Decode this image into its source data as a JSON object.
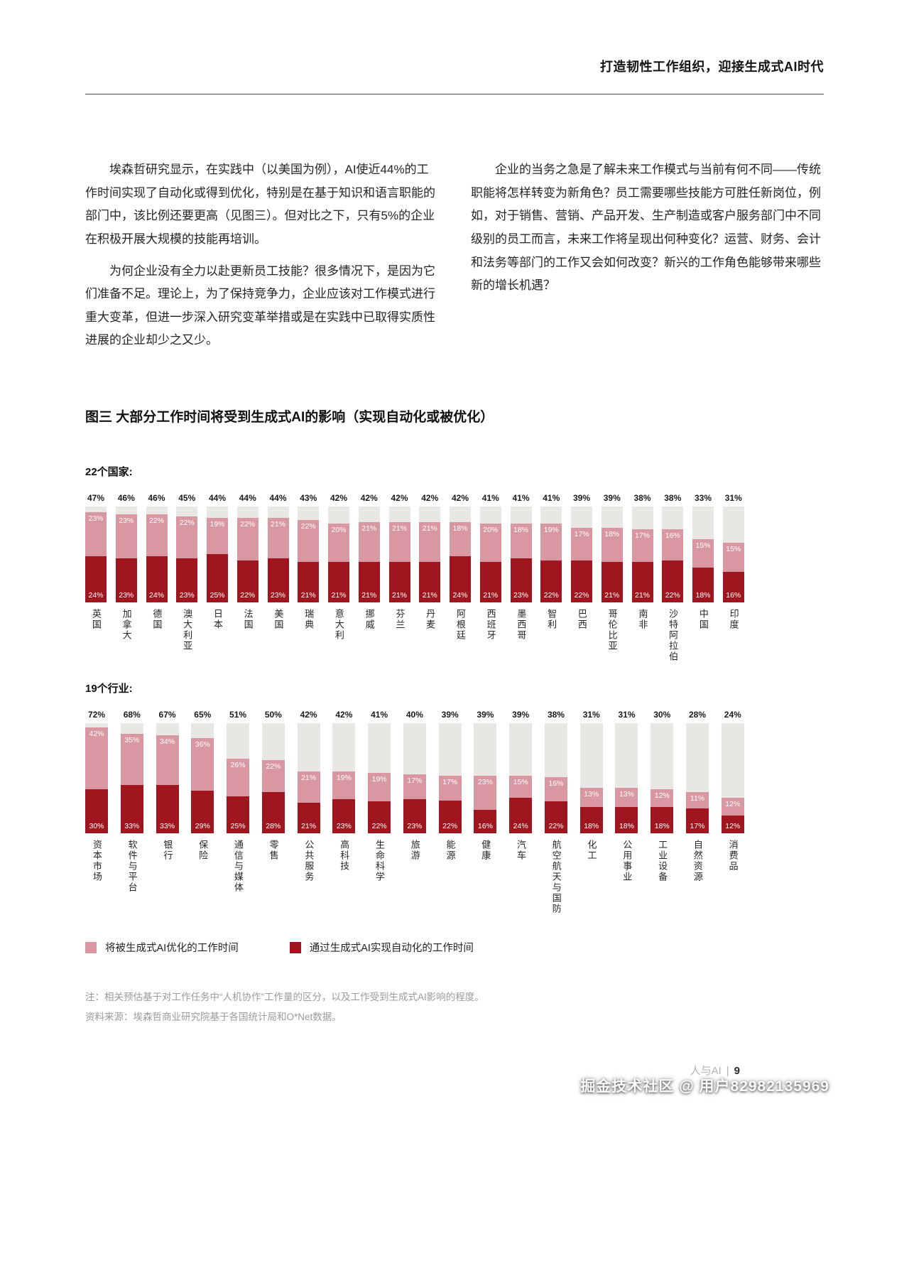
{
  "header": {
    "title": "打造韧性工作组织，迎接生成式AI时代"
  },
  "article": {
    "left_paragraphs": [
      "埃森哲研究显示，在实践中（以美国为例），AI使近44%的工作时间实现了自动化或得到优化，特别是在基于知识和语言职能的部门中，该比例还要更高（见图三）。但对比之下，只有5%的企业在积极开展大规模的技能再培训。",
      "为何企业没有全力以赴更新员工技能？很多情况下，是因为它们准备不足。理论上，为了保持竞争力，企业应该对工作模式进行重大变革，但进一步深入研究变革举措或是在实践中已取得实质性进展的企业却少之又少。"
    ],
    "right_paragraphs": [
      "企业的当务之急是了解未来工作模式与当前有何不同——传统职能将怎样转变为新角色？员工需要哪些技能方可胜任新岗位，例如，对于销售、营销、产品开发、生产制造或客户服务部门中不同级别的员工而言，未来工作将呈现出何种变化？运营、财务、会计和法务等部门的工作又会如何改变？新兴的工作角色能够带来哪些新的增长机遇？"
    ]
  },
  "figure": {
    "title": "图三 大部分工作时间将受到生成式AI的影响（实现自动化或被优化）",
    "legend": [
      {
        "label": "将被生成式AI优化的工作时间",
        "color": "#d998a1"
      },
      {
        "label": "通过生成式AI实现自动化的工作时间",
        "color": "#a0161f"
      }
    ],
    "colors": {
      "optimized": "#d998a1",
      "automated": "#a0161f",
      "remainder": "#e9e7e4"
    },
    "notes": [
      "注：相关预估基于对工作任务中“人机协作”工作量的区分，以及工作受到生成式AI影响的程度。",
      "资料来源：埃森哲商业研究院基于各国统计局和O*Net数据。"
    ]
  },
  "chart_data": [
    {
      "type": "bar",
      "stacked": true,
      "group_label": "22个国家:",
      "unit": "%",
      "ylim": [
        0,
        50
      ],
      "categories": [
        "英国",
        "加拿大",
        "德国",
        "澳大利亚",
        "日本",
        "法国",
        "美国",
        "瑞典",
        "意大利",
        "挪威",
        "芬兰",
        "丹麦",
        "阿根廷",
        "西班牙",
        "墨西哥",
        "智利",
        "巴西",
        "哥伦比亚",
        "南非",
        "沙特阿拉伯",
        "中国",
        "印度"
      ],
      "totals": [
        47,
        46,
        46,
        45,
        44,
        44,
        44,
        43,
        42,
        42,
        42,
        42,
        42,
        41,
        41,
        41,
        39,
        39,
        38,
        38,
        33,
        31
      ],
      "series": [
        {
          "name": "将被生成式AI优化的工作时间",
          "values": [
            23,
            23,
            22,
            22,
            19,
            22,
            21,
            22,
            20,
            21,
            21,
            21,
            18,
            20,
            18,
            19,
            17,
            18,
            17,
            16,
            15,
            15
          ]
        },
        {
          "name": "通过生成式AI实现自动化的工作时间",
          "values": [
            24,
            23,
            24,
            23,
            25,
            22,
            23,
            21,
            21,
            21,
            21,
            21,
            24,
            21,
            23,
            22,
            22,
            21,
            21,
            22,
            18,
            16
          ]
        }
      ]
    },
    {
      "type": "bar",
      "stacked": true,
      "group_label": "19个行业:",
      "unit": "%",
      "ylim": [
        0,
        75
      ],
      "categories": [
        "资本市场",
        "软件与平台",
        "银行",
        "保险",
        "通信与媒体",
        "零售",
        "公共服务",
        "高科技",
        "生命科学",
        "旅游",
        "能源",
        "健康",
        "汽车",
        "航空航天与国防",
        "化工",
        "公用事业",
        "工业设备",
        "自然资源",
        "消费品"
      ],
      "totals": [
        72,
        68,
        67,
        65,
        51,
        50,
        42,
        42,
        41,
        40,
        39,
        39,
        39,
        38,
        31,
        31,
        30,
        28,
        24
      ],
      "series": [
        {
          "name": "将被生成式AI优化的工作时间",
          "values": [
            42,
            35,
            34,
            36,
            26,
            22,
            21,
            19,
            19,
            17,
            17,
            23,
            15,
            16,
            13,
            13,
            12,
            11,
            12
          ]
        },
        {
          "name": "通过生成式AI实现自动化的工作时间",
          "values": [
            30,
            33,
            33,
            29,
            25,
            28,
            21,
            23,
            22,
            23,
            22,
            16,
            24,
            22,
            18,
            18,
            18,
            17,
            12
          ]
        }
      ]
    }
  ],
  "footer": {
    "section_label": "人与AI",
    "separator": "|",
    "page_number": "9",
    "watermark": "掘金技术社区 @ 用户82982135969"
  }
}
